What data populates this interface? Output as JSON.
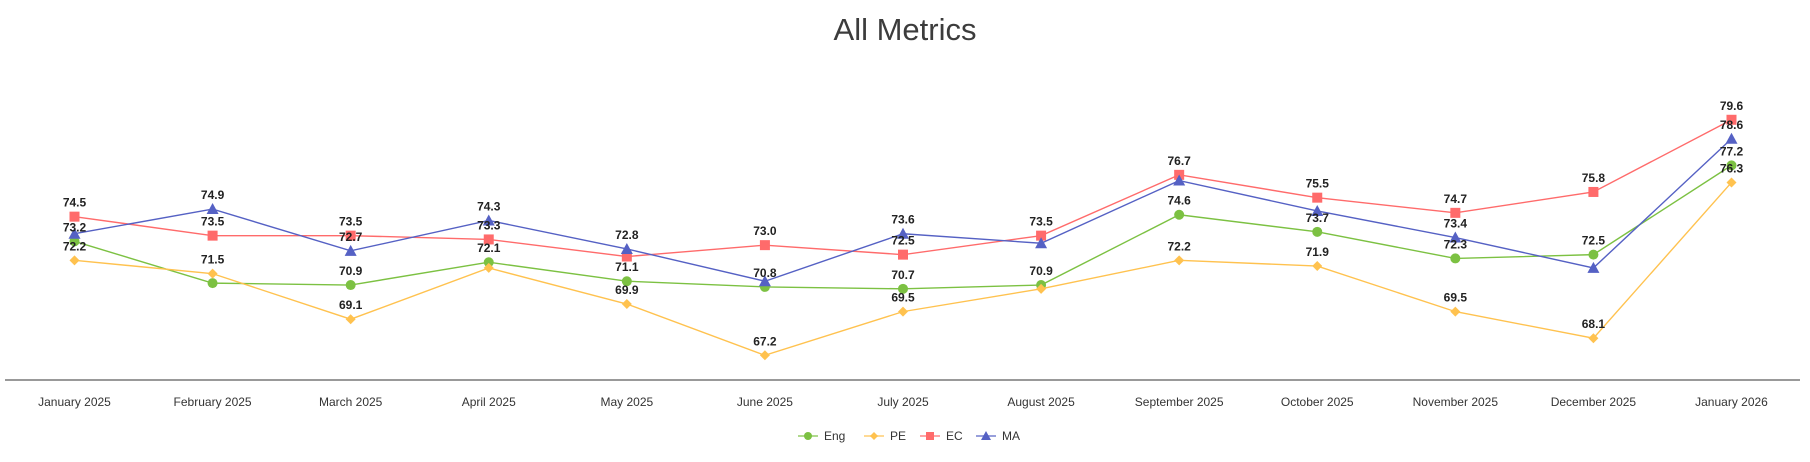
{
  "chart_data": {
    "type": "line",
    "title": "All Metrics",
    "xlabel": "",
    "ylabel": "",
    "ylim": [
      65.9,
      83.8
    ],
    "grid": false,
    "legend_position": "bottom",
    "categories": [
      "January 2025",
      "February 2025",
      "March 2025",
      "April 2025",
      "May 2025",
      "June 2025",
      "July 2025",
      "August 2025",
      "September 2025",
      "October 2025",
      "November 2025",
      "December 2025",
      "January 2026"
    ],
    "series": [
      {
        "name": "Eng",
        "color": "#7cc142",
        "marker": "circle",
        "values": [
          73.2,
          71.0,
          70.9,
          72.1,
          71.1,
          70.8,
          70.7,
          70.9,
          74.6,
          73.7,
          72.3,
          72.5,
          77.2
        ],
        "labels": [
          "73.2",
          null,
          "70.9",
          "72.1",
          "71.1",
          "70.8",
          "70.7",
          "70.9",
          "74.6",
          "73.7",
          "72.3",
          "72.5",
          "77.2"
        ]
      },
      {
        "name": "PE",
        "color": "#ffc24f",
        "marker": "diamond",
        "values": [
          72.2,
          71.5,
          69.1,
          71.8,
          69.9,
          67.2,
          69.5,
          70.7,
          72.2,
          71.9,
          69.5,
          68.1,
          76.3
        ],
        "labels": [
          "72.2",
          "71.5",
          "69.1",
          null,
          "69.9",
          "67.2",
          "69.5",
          null,
          "72.2",
          "71.9",
          "69.5",
          "68.1",
          "76.3"
        ]
      },
      {
        "name": "EC",
        "color": "#ff6b6b",
        "marker": "square",
        "values": [
          74.5,
          73.5,
          73.5,
          73.3,
          72.4,
          73.0,
          72.5,
          73.5,
          76.7,
          75.5,
          74.7,
          75.8,
          79.6
        ],
        "labels": [
          "74.5",
          "73.5",
          "73.5",
          "73.3",
          null,
          "73.0",
          "72.5",
          "73.5",
          "76.7",
          "75.5",
          "74.7",
          "75.8",
          "79.6"
        ]
      },
      {
        "name": "MA",
        "color": "#5561c4",
        "marker": "triangle",
        "values": [
          73.6,
          74.9,
          72.7,
          74.3,
          72.8,
          71.1,
          73.6,
          73.1,
          76.4,
          74.8,
          73.4,
          71.8,
          78.6
        ],
        "labels": [
          null,
          "74.9",
          "72.7",
          "74.3",
          "72.8",
          null,
          "73.6",
          null,
          null,
          null,
          "73.4",
          null,
          "78.6"
        ]
      }
    ]
  }
}
